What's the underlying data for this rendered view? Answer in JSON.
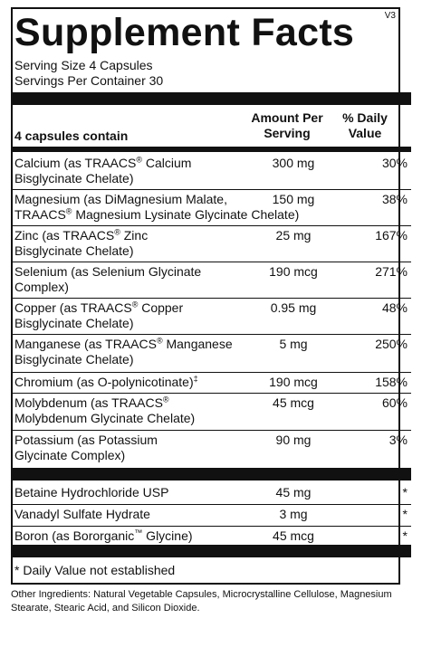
{
  "version": "V3",
  "title": "Supplement Facts",
  "serving_size": "Serving Size 4 Capsules",
  "servings_per_container": "Servings Per Container 30",
  "header": {
    "contain": "4 capsules contain",
    "amount_line1": "Amount Per",
    "amount_line2": "Serving",
    "dv_line1": "% Daily",
    "dv_line2": "Value"
  },
  "nutrients": [
    {
      "line1_pre": "Calcium (as TRAACS",
      "line1_sup": "®",
      "line1_post": " Calcium",
      "line2": "Bisglycinate Chelate)",
      "amount": "300 mg",
      "dv": "30%"
    },
    {
      "line1_pre": "Magnesium (as DiMagnesium Malate,",
      "line1_sup": "",
      "line1_post": "",
      "line2_pre": "TRAACS",
      "line2_sup": "®",
      "line2_post": " Magnesium Lysinate Glycinate Chelate)",
      "amount": "150 mg",
      "dv": "38%"
    },
    {
      "line1_pre": "Zinc (as TRAACS",
      "line1_sup": "®",
      "line1_post": " Zinc",
      "line2": "Bisglycinate Chelate)",
      "amount": "25 mg",
      "dv": "167%"
    },
    {
      "line1_pre": "Selenium (as Selenium Glycinate",
      "line1_sup": "",
      "line1_post": "",
      "line2": "Complex)",
      "amount": "190 mcg",
      "dv": "271%"
    },
    {
      "line1_pre": "Copper (as TRAACS",
      "line1_sup": "®",
      "line1_post": " Copper",
      "line2": "Bisglycinate Chelate)",
      "amount": "0.95 mg",
      "dv": "48%"
    },
    {
      "line1_pre": "Manganese (as TRAACS",
      "line1_sup": "®",
      "line1_post": " Manganese",
      "line2": "Bisglycinate Chelate)",
      "amount": "5 mg",
      "dv": "250%"
    },
    {
      "line1_pre": "Chromium (as O-polynicotinate)",
      "line1_sup": "‡",
      "line1_post": "",
      "line2": "",
      "amount": "190 mcg",
      "dv": "158%"
    },
    {
      "line1_pre": "Molybdenum (as TRAACS",
      "line1_sup": "®",
      "line1_post": "",
      "line2": "Molybdenum Glycinate Chelate)",
      "amount": "45 mcg",
      "dv": "60%"
    },
    {
      "line1_pre": "Potassium (as Potassium",
      "line1_sup": "",
      "line1_post": "",
      "line2": "Glycinate Complex)",
      "amount": "90 mg",
      "dv": "3%"
    }
  ],
  "others": [
    {
      "pre": "Betaine Hydrochloride USP",
      "sup": "",
      "post": "",
      "amount": "45 mg",
      "dv": "*"
    },
    {
      "pre": "Vanadyl Sulfate Hydrate",
      "sup": "",
      "post": "",
      "amount": "3 mg",
      "dv": "*"
    },
    {
      "pre": "Boron (as Bororganic",
      "sup": "™",
      "post": " Glycine)",
      "amount": "45 mcg",
      "dv": "*"
    }
  ],
  "footnote": "* Daily Value not established",
  "other_ingredients": "Other Ingredients: Natural Vegetable Capsules, Microcrystalline Cellulose, Magnesium Stearate, Stearic Acid, and Silicon Dioxide."
}
